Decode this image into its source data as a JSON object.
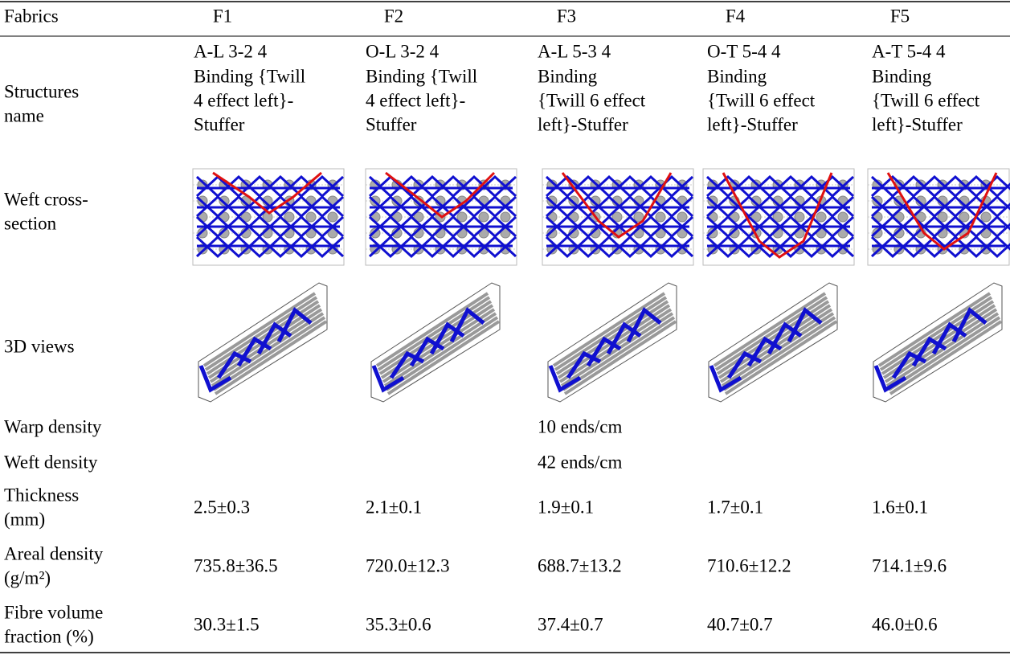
{
  "table": {
    "header": [
      "Fabrics",
      "F1",
      "F2",
      "F3",
      "F4",
      "F5"
    ],
    "structures": {
      "label": [
        "Structures",
        "name"
      ],
      "cells": [
        [
          "A-L 3-2 4",
          "Binding {Twill",
          "4 effect left}-",
          "Stuffer"
        ],
        [
          "O-L 3-2 4",
          "Binding {Twill",
          "4 effect left}-",
          "Stuffer"
        ],
        [
          "A-L 5-3 4",
          "Binding",
          "{Twill 6 effect",
          "left}-Stuffer"
        ],
        [
          "O-T 5-4 4",
          "Binding",
          "{Twill 6 effect",
          "left}-Stuffer"
        ],
        [
          "A-T 5-4 4",
          "Binding",
          "{Twill 6 effect",
          "left}-Stuffer"
        ]
      ]
    },
    "cross_section_label": [
      "Weft cross-",
      "section"
    ],
    "views_label": "3D views",
    "warp_density": {
      "label": "Warp density",
      "value": "10 ends/cm"
    },
    "weft_density": {
      "label": "Weft density",
      "value": "42 ends/cm"
    },
    "thickness": {
      "label": [
        "Thickness",
        "(mm)"
      ],
      "values": [
        "2.5±0.3",
        "2.1±0.1",
        "1.9±0.1",
        "1.7±0.1",
        "1.6±0.1"
      ]
    },
    "areal_density": {
      "label": [
        "Areal density",
        "(g/m²)"
      ],
      "values": [
        "735.8±36.5",
        "720.0±12.3",
        "688.7±13.2",
        "710.6±12.2",
        "714.1±9.6"
      ]
    },
    "fibre_volume": {
      "label": [
        "Fibre volume",
        "fraction (%)"
      ],
      "values": [
        "30.3±1.5",
        "35.3±0.6",
        "37.4±0.7",
        "40.7±0.7",
        "46.0±0.6"
      ]
    }
  }
}
